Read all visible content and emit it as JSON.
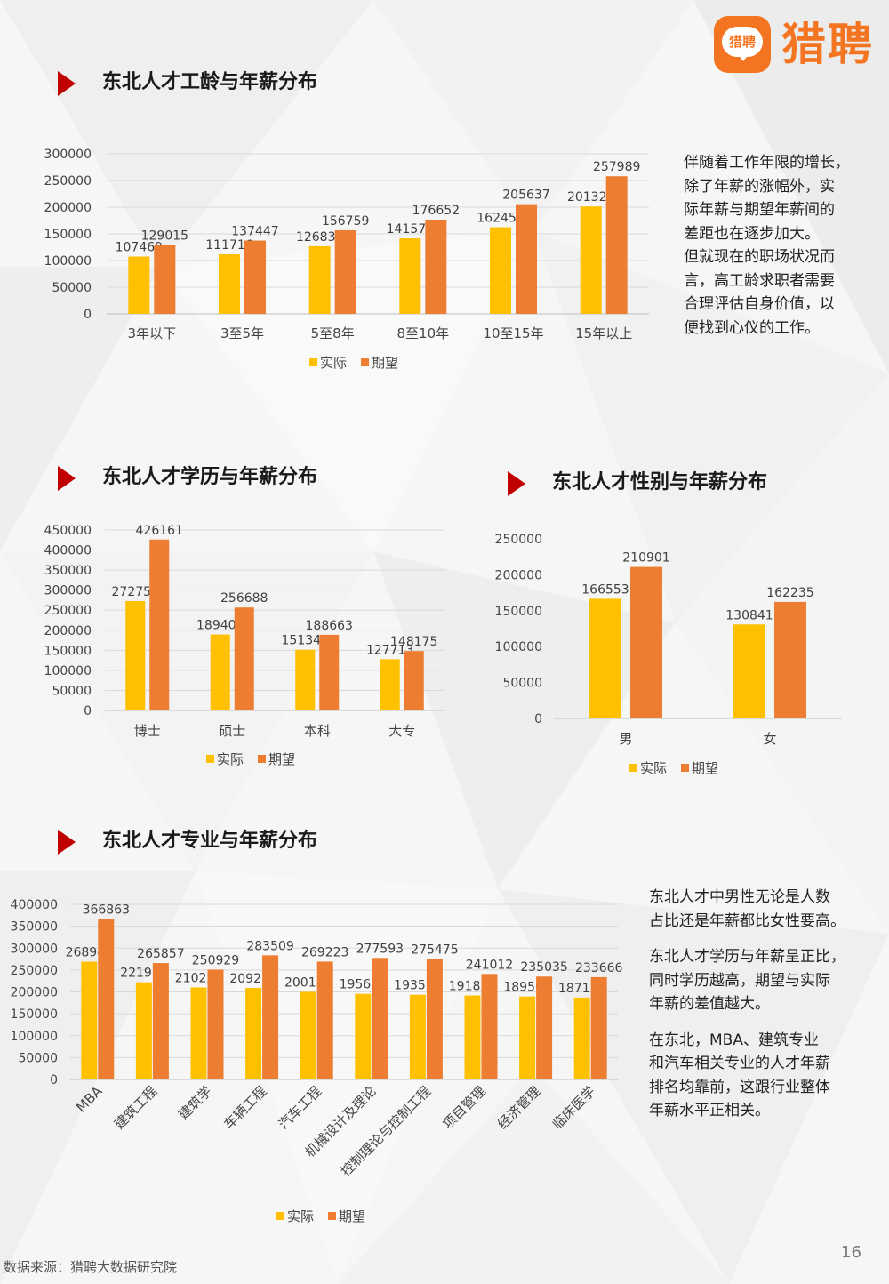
{
  "brand": {
    "logo_mark": "猎聘",
    "logo_text": "猎聘"
  },
  "colors": {
    "actual": "#ffc000",
    "expected": "#ed7d31",
    "accent": "#c00000",
    "grid": "#d9d9d9"
  },
  "sections": {
    "tenure": {
      "title": "东北人才工龄与年薪分布"
    },
    "education": {
      "title": "东北人才学历与年薪分布"
    },
    "gender": {
      "title": "东北人才性别与年薪分布"
    },
    "major": {
      "title": "东北人才专业与年薪分布"
    }
  },
  "text": {
    "tenure_para": [
      "伴随着工作年限的增长，",
      "除了年薪的涨幅外，实",
      "际年薪与期望年薪间的",
      "差距也在逐步加大。",
      "但就现在的职场状况而",
      "言，高工龄求职者需要",
      "合理评估自身价值，以",
      "便找到心仪的工作。"
    ],
    "major_para": [
      [
        "东北人才中男性无论是人数",
        "占比还是年薪都比女性要高。"
      ],
      [
        "东北人才学历与年薪呈正比，",
        "同时学历越高，期望与实际",
        "年薪的差值越大。"
      ],
      [
        "在东北，MBA、建筑专业",
        "和汽车相关专业的人才年薪",
        "排名均靠前，这跟行业整体",
        "年薪水平正相关。"
      ]
    ]
  },
  "chart_data": [
    {
      "id": "tenure",
      "type": "bar",
      "categories": [
        "3年以下",
        "3至5年",
        "5至8年",
        "8至10年",
        "10至15年",
        "15年以上"
      ],
      "series": [
        {
          "name": "实际",
          "values": [
            107469,
            111716,
            126834,
            141574,
            162456,
            201328
          ]
        },
        {
          "name": "期望",
          "values": [
            129015,
            137447,
            156759,
            176652,
            205637,
            257989
          ]
        }
      ],
      "yticks": [
        "0",
        "50000",
        "100000",
        "150000",
        "200000",
        "250000",
        "300000"
      ],
      "ylim": [
        0,
        300000
      ],
      "grid": true,
      "legend": "bottom"
    },
    {
      "id": "education",
      "type": "bar",
      "categories": [
        "博士",
        "硕士",
        "本科",
        "大专"
      ],
      "series": [
        {
          "name": "实际",
          "values": [
            272757,
            189403,
            151341,
            127713
          ]
        },
        {
          "name": "期望",
          "values": [
            426161,
            256688,
            188663,
            148175
          ]
        }
      ],
      "yticks": [
        "0",
        "50000",
        "100000",
        "150000",
        "200000",
        "250000",
        "300000",
        "350000",
        "400000",
        "450000"
      ],
      "ylim": [
        0,
        450000
      ],
      "grid": true,
      "legend": "bottom"
    },
    {
      "id": "gender",
      "type": "bar",
      "categories": [
        "男",
        "女"
      ],
      "series": [
        {
          "name": "实际",
          "values": [
            166553,
            130841
          ]
        },
        {
          "name": "期望",
          "values": [
            210901,
            162235
          ]
        }
      ],
      "yticks": [
        "0",
        "50000",
        "100000",
        "150000",
        "200000",
        "250000"
      ],
      "ylim": [
        0,
        250000
      ],
      "grid": false,
      "legend": "bottom"
    },
    {
      "id": "major",
      "type": "bar",
      "categories": [
        "MBA",
        "建筑工程",
        "建筑学",
        "车辆工程",
        "汽车工程",
        "机械设计及理论",
        "控制理论与控制工程",
        "项目管理",
        "经济管理",
        "临床医学"
      ],
      "series": [
        {
          "name": "实际",
          "values": [
            268942,
            221976,
            210229,
            209217,
            200131,
            195650,
            193527,
            191836,
            189501,
            187138
          ]
        },
        {
          "name": "期望",
          "values": [
            366863,
            265857,
            250929,
            283509,
            269223,
            277593,
            275475,
            241012,
            235035,
            233666
          ]
        }
      ],
      "yticks": [
        "0",
        "50000",
        "100000",
        "150000",
        "200000",
        "250000",
        "300000",
        "350000",
        "400000"
      ],
      "ylim": [
        0,
        400000
      ],
      "grid": true,
      "legend": "bottom"
    }
  ],
  "footer": {
    "source": "数据来源：猎聘大数据研究院",
    "page": "16"
  }
}
